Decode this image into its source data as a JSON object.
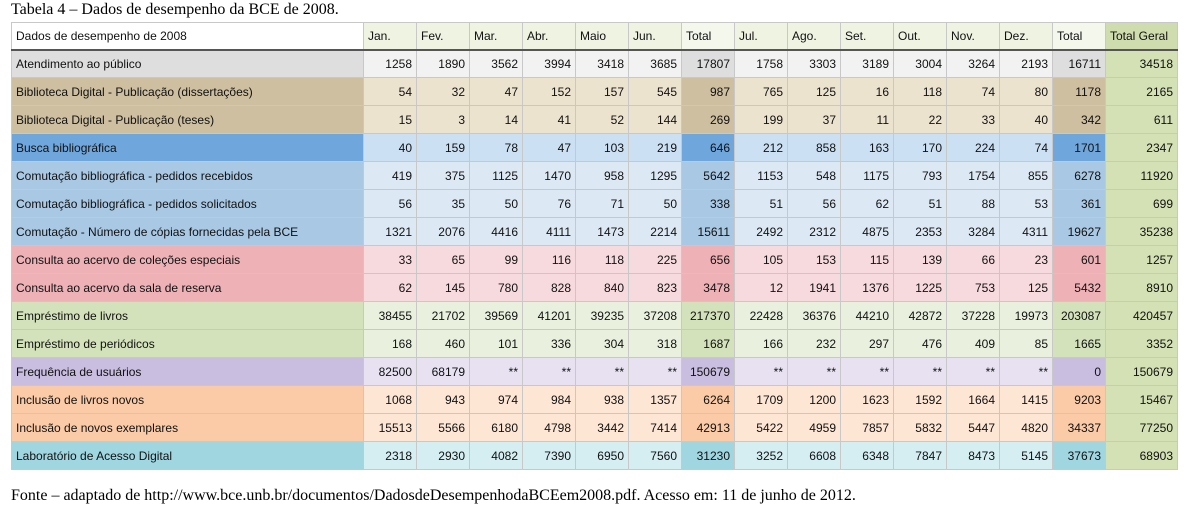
{
  "caption": "Tabela 4 – Dados de desempenho da BCE de 2008.",
  "source": "Fonte – adaptado de http://www.bce.unb.br/documentos/DadosdeDesempenhodaBCEem2008.pdf. Acesso em: 11 de junho de 2012.",
  "colors": {
    "atendimento": {
      "label": "#dedede",
      "cell": "#f2f2f2",
      "total": "#dedede"
    },
    "biblioteca": {
      "label": "#cdbf9f",
      "cell": "#ece3cf",
      "total": "#cdbf9f"
    },
    "busca": {
      "label": "#6fa7dc",
      "cell": "#cce0f4",
      "total": "#6fa7dc"
    },
    "comutacao": {
      "label": "#a9c8e3",
      "cell": "#dce9f4",
      "total": "#a9c8e3"
    },
    "consulta": {
      "label": "#edb1b6",
      "cell": "#f7dadd",
      "total": "#edb1b6"
    },
    "emprestimo": {
      "label": "#d3e2bb",
      "cell": "#e9f1de",
      "total": "#d3e2bb"
    },
    "frequencia": {
      "label": "#c9bde0",
      "cell": "#e7e1f1",
      "total": "#c9bde0"
    },
    "inclusao": {
      "label": "#fbcaa6",
      "cell": "#fde6d4",
      "total": "#fbcaa6"
    },
    "laboratorio": {
      "label": "#9fd6e0",
      "cell": "#d4eef2",
      "total": "#9fd6e0"
    }
  },
  "table": {
    "header": [
      "Dados de desempenho de 2008",
      "Jan.",
      "Fev.",
      "Mar.",
      "Abr.",
      "Maio",
      "Jun.",
      "Total",
      "Jul.",
      "Ago.",
      "Set.",
      "Out.",
      "Nov.",
      "Dez.",
      "Total",
      "Total Geral"
    ],
    "rows": [
      {
        "group": "atendimento",
        "cells": [
          "Atendimento ao público",
          "1258",
          "1890",
          "3562",
          "3994",
          "3418",
          "3685",
          "17807",
          "1758",
          "3303",
          "3189",
          "3004",
          "3264",
          "2193",
          "16711",
          "34518"
        ]
      },
      {
        "group": "biblioteca",
        "cells": [
          "Biblioteca Digital - Publicação (dissertações)",
          "54",
          "32",
          "47",
          "152",
          "157",
          "545",
          "987",
          "765",
          "125",
          "16",
          "118",
          "74",
          "80",
          "1178",
          "2165"
        ]
      },
      {
        "group": "biblioteca",
        "cells": [
          "Biblioteca Digital - Publicação (teses)",
          "15",
          "3",
          "14",
          "41",
          "52",
          "144",
          "269",
          "199",
          "37",
          "11",
          "22",
          "33",
          "40",
          "342",
          "611"
        ]
      },
      {
        "group": "busca",
        "cells": [
          "Busca bibliográfica",
          "40",
          "159",
          "78",
          "47",
          "103",
          "219",
          "646",
          "212",
          "858",
          "163",
          "170",
          "224",
          "74",
          "1701",
          "2347"
        ]
      },
      {
        "group": "comutacao",
        "cells": [
          "Comutação bibliográfica - pedidos recebidos",
          "419",
          "375",
          "1125",
          "1470",
          "958",
          "1295",
          "5642",
          "1153",
          "548",
          "1175",
          "793",
          "1754",
          "855",
          "6278",
          "11920"
        ]
      },
      {
        "group": "comutacao",
        "cells": [
          "Comutação bibliográfica - pedidos solicitados",
          "56",
          "35",
          "50",
          "76",
          "71",
          "50",
          "338",
          "51",
          "56",
          "62",
          "51",
          "88",
          "53",
          "361",
          "699"
        ]
      },
      {
        "group": "comutacao",
        "cells": [
          "Comutação - Número de cópias fornecidas pela BCE",
          "1321",
          "2076",
          "4416",
          "4111",
          "1473",
          "2214",
          "15611",
          "2492",
          "2312",
          "4875",
          "2353",
          "3284",
          "4311",
          "19627",
          "35238"
        ]
      },
      {
        "group": "consulta",
        "cells": [
          "Consulta ao acervo de coleções especiais",
          "33",
          "65",
          "99",
          "116",
          "118",
          "225",
          "656",
          "105",
          "153",
          "115",
          "139",
          "66",
          "23",
          "601",
          "1257"
        ]
      },
      {
        "group": "consulta",
        "cells": [
          "Consulta ao acervo da sala de reserva",
          "62",
          "145",
          "780",
          "828",
          "840",
          "823",
          "3478",
          "12",
          "1941",
          "1376",
          "1225",
          "753",
          "125",
          "5432",
          "8910"
        ]
      },
      {
        "group": "emprestimo",
        "cells": [
          "Empréstimo de livros",
          "38455",
          "21702",
          "39569",
          "41201",
          "39235",
          "37208",
          "217370",
          "22428",
          "36376",
          "44210",
          "42872",
          "37228",
          "19973",
          "203087",
          "420457"
        ]
      },
      {
        "group": "emprestimo",
        "cells": [
          "Empréstimo de periódicos",
          "168",
          "460",
          "101",
          "336",
          "304",
          "318",
          "1687",
          "166",
          "232",
          "297",
          "476",
          "409",
          "85",
          "1665",
          "3352"
        ]
      },
      {
        "group": "frequencia",
        "cells": [
          "Frequência de usuários",
          "82500",
          "68179",
          "**",
          "**",
          "**",
          "**",
          "150679",
          "**",
          "**",
          "**",
          "**",
          "**",
          "**",
          "0",
          "150679"
        ]
      },
      {
        "group": "inclusao",
        "cells": [
          "Inclusão de livros novos",
          "1068",
          "943",
          "974",
          "984",
          "938",
          "1357",
          "6264",
          "1709",
          "1200",
          "1623",
          "1592",
          "1664",
          "1415",
          "9203",
          "15467"
        ]
      },
      {
        "group": "inclusao",
        "cells": [
          "Inclusão de novos exemplares",
          "15513",
          "5566",
          "6180",
          "4798",
          "3442",
          "7414",
          "42913",
          "5422",
          "4959",
          "7857",
          "5832",
          "5447",
          "4820",
          "34337",
          "77250"
        ]
      },
      {
        "group": "laboratorio",
        "cells": [
          "Laboratório de Acesso Digital",
          "2318",
          "2930",
          "4082",
          "7390",
          "6950",
          "7560",
          "31230",
          "3252",
          "6608",
          "6348",
          "7847",
          "8473",
          "5145",
          "37673",
          "68903"
        ]
      }
    ]
  }
}
